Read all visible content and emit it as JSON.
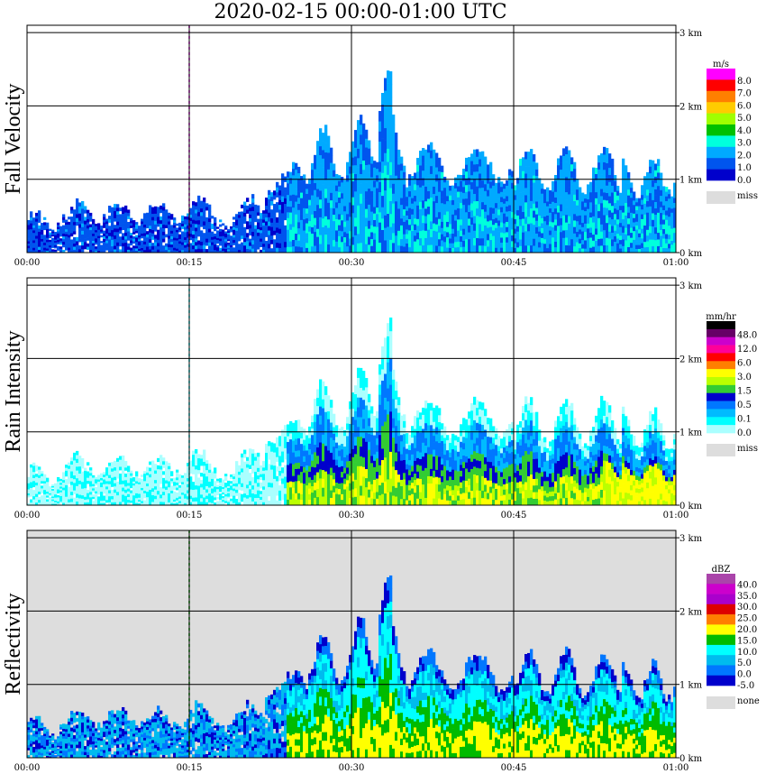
{
  "title": "2020-02-15   00:00-01:00 UTC",
  "chart_data": [
    {
      "type": "heatmap",
      "title": "Fall Velocity",
      "x_ticks": [
        "00:00",
        "00:15",
        "00:30",
        "00:45",
        "01:00"
      ],
      "y_ticks": [
        "0 km",
        "1 km",
        "2 km",
        "3 km"
      ],
      "ylim": [
        0,
        3.1
      ],
      "colorbar": {
        "unit": "m/s",
        "labels": [
          "8.0",
          "7.0",
          "6.0",
          "5.0",
          "4.0",
          "3.0",
          "2.0",
          "1.0",
          "0.0"
        ],
        "colors": [
          "#ff00ff",
          "#ff0000",
          "#ff7f00",
          "#ffcc00",
          "#a0ff00",
          "#00c000",
          "#00ffdd",
          "#00aaff",
          "#0055ee",
          "#0000cc"
        ],
        "missing_label": "miss",
        "missing_color": "#dddddd"
      },
      "background": "#ffffff"
    },
    {
      "type": "heatmap",
      "title": "Rain Intensity",
      "x_ticks": [
        "00:00",
        "00:15",
        "00:30",
        "00:45",
        "01:00"
      ],
      "y_ticks": [
        "0 km",
        "1 km",
        "2 km",
        "3 km"
      ],
      "ylim": [
        0,
        3.1
      ],
      "colorbar": {
        "unit": "mm/hr",
        "labels": [
          "48.0",
          "12.0",
          "6.0",
          "3.0",
          "1.5",
          "0.5",
          "0.1",
          "0.0"
        ],
        "colors": [
          "#000000",
          "#660066",
          "#cc00cc",
          "#ff0099",
          "#ff0000",
          "#ff7f00",
          "#ffff00",
          "#bbff00",
          "#33cc33",
          "#0000cc",
          "#0077ff",
          "#00bbff",
          "#00ffff",
          "#aaffff"
        ],
        "missing_label": "miss",
        "missing_color": "#dddddd"
      },
      "background": "#ffffff"
    },
    {
      "type": "heatmap",
      "title": "Reflectivity",
      "x_ticks": [
        "00:00",
        "00:15",
        "00:30",
        "00:45",
        "01:00"
      ],
      "y_ticks": [
        "0 km",
        "1 km",
        "2 km",
        "3 km"
      ],
      "ylim": [
        0,
        3.1
      ],
      "colorbar": {
        "unit": "dBZ",
        "labels": [
          "40.0",
          "35.0",
          "30.0",
          "25.0",
          "20.0",
          "15.0",
          "10.0",
          "5.0",
          "0.0",
          "-5.0"
        ],
        "colors": [
          "#aa44aa",
          "#cc00cc",
          "#aa00cc",
          "#dd0000",
          "#ff7f00",
          "#ffff00",
          "#00bb00",
          "#00ffff",
          "#00bbee",
          "#0077ff",
          "#0000cc"
        ],
        "missing_label": "none",
        "missing_color": "#dddddd"
      },
      "background": "#dddddd"
    }
  ]
}
